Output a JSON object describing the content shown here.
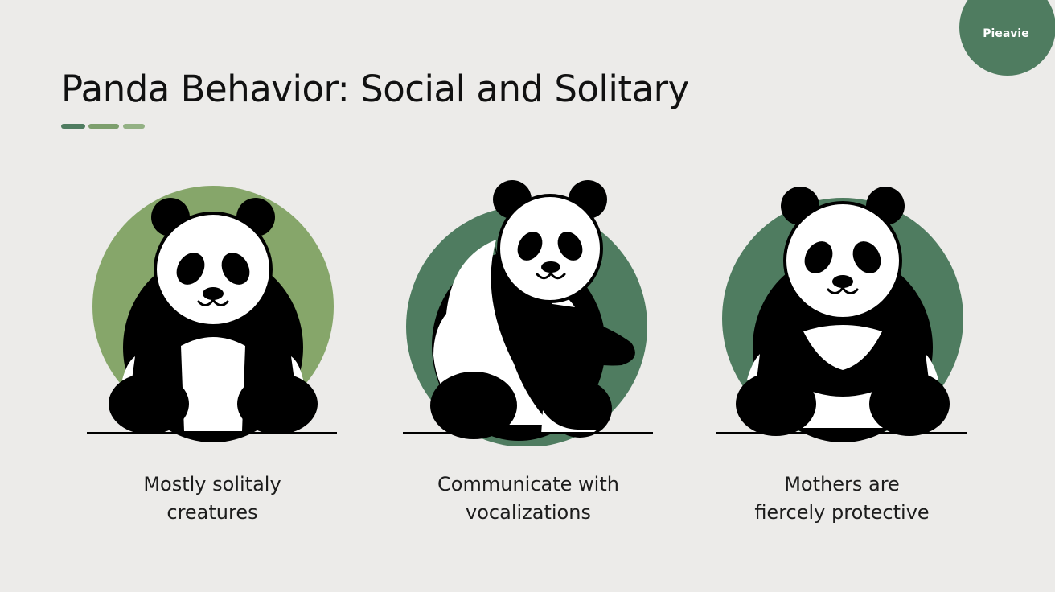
{
  "badge": {
    "label": "Pieavie"
  },
  "title": "Panda Behavior: Social and Solitary",
  "colors": {
    "background": "#ecebe9",
    "accent_dark": "#4f7c60",
    "accent_light": "#7d9f6d",
    "circle_light_green": "#86a66a",
    "circle_dark_green": "#4f7c60",
    "text": "#111111"
  },
  "cards": [
    {
      "icon": "sitting-panda-icon",
      "caption_lines": [
        "Mostly solitaly",
        "creatures"
      ],
      "circle_color": "#86a66a"
    },
    {
      "icon": "side-panda-icon",
      "caption_lines": [
        "Communicate with",
        "vocalizations"
      ],
      "circle_color": "#4f7c60"
    },
    {
      "icon": "hugging-panda-icon",
      "caption_lines": [
        "Mothers are",
        "fiercely protective"
      ],
      "circle_color": "#4f7c60"
    }
  ]
}
